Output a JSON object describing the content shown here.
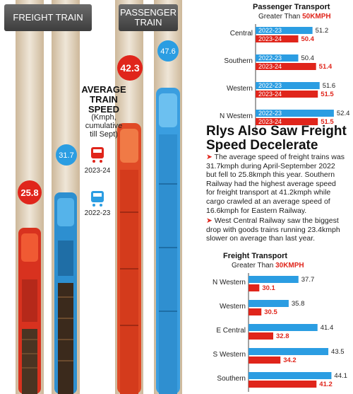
{
  "header": {
    "freight_label": "FREIGHT TRAIN",
    "passenger_label_1": "PASSENGER",
    "passenger_label_2": "TRAIN"
  },
  "average_speed": {
    "title": [
      "AVERAGE",
      "TRAIN",
      "SPEED"
    ],
    "subtitle": [
      "(Kmph,",
      "cumulative",
      "till Sept)"
    ],
    "legend_2324": "2023-24",
    "legend_2223": "2022-23",
    "freight_2324": "25.8",
    "freight_2223": "31.7",
    "passenger_2324": "42.3",
    "passenger_2223": "47.6"
  },
  "colors": {
    "y2223": "#2b9de2",
    "y2324": "#e0251b",
    "dark": "#3b3b3b"
  },
  "article": {
    "title_1": "Rlys Also Saw Freight",
    "title_2": "Speed Decelerate",
    "p1": [
      "The average speed of freight trains was",
      "31.7kmph during April-September 2022",
      "but fell to 25.8kmph this year. Southern",
      "Railway had the highest average speed",
      "for freight transport at 41.2kmph while",
      "cargo crawled at an average speed of",
      "16.6kmph for Eastern Railway."
    ],
    "p2": [
      "West Central Railway saw the biggest",
      "drop with goods trains running 23.4kmph",
      "slower on average than last year."
    ]
  },
  "chart_data": [
    {
      "type": "bar",
      "title": "Passenger Transport",
      "subtitle_prefix": "Greater Than ",
      "subtitle_highlight": "50KMPH",
      "categories": [
        "Central",
        "Southern",
        "Western",
        "N Western"
      ],
      "series": [
        {
          "name": "2022-23",
          "values": [
            51.2,
            50.4,
            51.6,
            52.4
          ]
        },
        {
          "name": "2023-24",
          "values": [
            50.4,
            51.4,
            51.5,
            51.5
          ]
        }
      ],
      "xlim": [
        48,
        53
      ]
    },
    {
      "type": "bar",
      "title": "Freight Transport",
      "subtitle_prefix": "Greater Than ",
      "subtitle_highlight": "30KMPH",
      "categories": [
        "N Western",
        "Western",
        "E Central",
        "S Western",
        "Southern"
      ],
      "series": [
        {
          "values": [
            37.7,
            35.8,
            41.4,
            43.5,
            44.1
          ]
        },
        {
          "values": [
            30.1,
            30.5,
            32.8,
            34.2,
            41.2
          ]
        }
      ],
      "xlim": [
        28,
        45
      ]
    }
  ]
}
